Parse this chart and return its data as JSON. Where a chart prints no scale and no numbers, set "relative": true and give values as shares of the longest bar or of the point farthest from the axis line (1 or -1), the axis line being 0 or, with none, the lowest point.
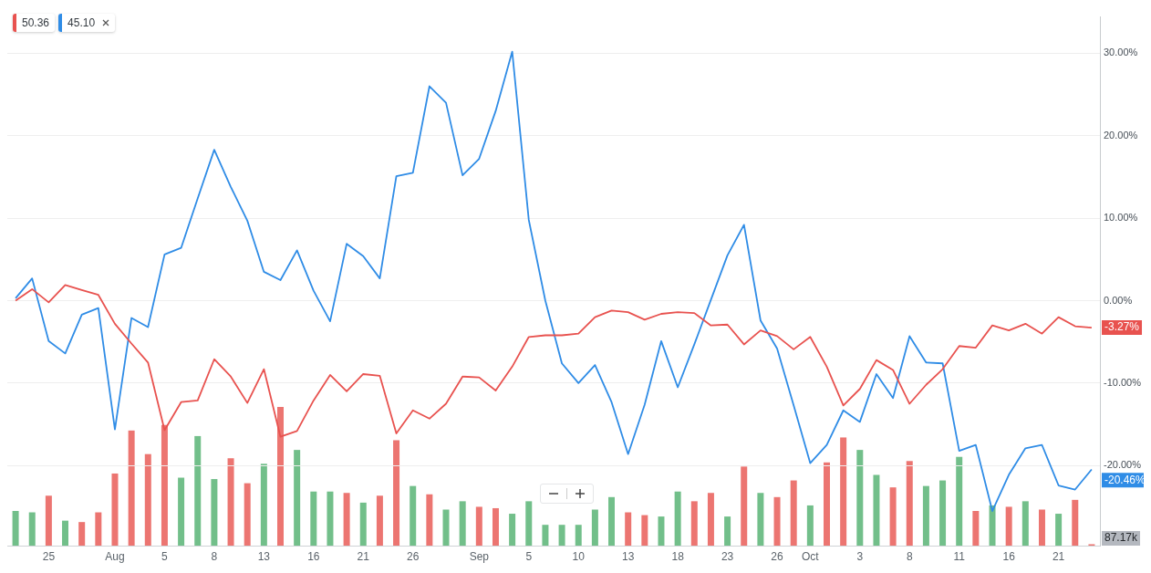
{
  "chart_data": [
    {
      "type": "line",
      "categories": [
        null,
        null,
        "25",
        null,
        null,
        null,
        "Aug",
        null,
        null,
        "5",
        null,
        null,
        "8",
        null,
        null,
        "13",
        null,
        null,
        "16",
        null,
        null,
        "21",
        null,
        null,
        "26",
        null,
        null,
        null,
        "Sep",
        null,
        null,
        "5",
        null,
        null,
        "10",
        null,
        null,
        "13",
        null,
        null,
        "18",
        null,
        null,
        "23",
        null,
        null,
        "26",
        null,
        "Oct",
        null,
        null,
        "3",
        null,
        null,
        "8",
        null,
        null,
        "11",
        null,
        null,
        "16",
        null,
        null,
        "21",
        null,
        null
      ],
      "series": [
        {
          "color": "#e8524f",
          "values": [
            0.0,
            1.4,
            -0.2,
            1.9,
            1.3,
            0.7,
            -2.8,
            -5.2,
            -7.5,
            -15.7,
            -12.3,
            -12.1,
            -7.1,
            -9.2,
            -12.4,
            -8.3,
            -16.5,
            -15.8,
            -12.1,
            -9.0,
            -11.0,
            -8.9,
            -9.1,
            -16.1,
            -13.3,
            -14.3,
            -12.5,
            -9.2,
            -9.3,
            -10.9,
            -8.0,
            -4.4,
            -4.2,
            -4.2,
            -4.0,
            -2.0,
            -1.2,
            -1.4,
            -2.3,
            -1.6,
            -1.4,
            -1.5,
            -3.0,
            -2.9,
            -5.3,
            -3.6,
            -4.3,
            -5.9,
            -4.4,
            -8.0,
            -12.7,
            -10.7,
            -7.2,
            -8.4,
            -12.5,
            -10.2,
            -8.3,
            -5.5,
            -5.7,
            -3.0,
            -3.6,
            -2.8,
            -4.0,
            -2.0,
            -3.1,
            -3.27
          ],
          "value_labels": [
            null,
            null,
            null,
            null,
            null,
            null,
            null,
            null,
            null,
            null,
            null,
            null,
            null,
            null,
            null,
            null,
            null,
            null,
            null,
            null,
            null,
            null,
            null,
            null,
            null,
            null,
            null,
            null,
            null,
            null,
            null,
            null,
            null,
            null,
            null,
            null,
            null,
            null,
            null,
            null,
            null,
            null,
            null,
            null,
            null,
            null,
            null,
            null,
            null,
            null,
            null,
            null,
            null,
            null,
            null,
            null,
            null,
            null,
            null,
            null,
            null,
            null,
            null,
            null,
            null,
            "-3.27%"
          ]
        },
        {
          "color": "#2f8ce6",
          "values": [
            0.3,
            2.7,
            -4.9,
            -6.4,
            -1.7,
            -0.9,
            -15.6,
            -2.1,
            -3.2,
            5.6,
            6.4,
            12.4,
            18.3,
            13.8,
            9.7,
            3.5,
            2.5,
            6.1,
            1.2,
            -2.5,
            6.9,
            5.4,
            2.7,
            15.1,
            15.5,
            26.0,
            24.0,
            15.2,
            17.2,
            23.0,
            30.2,
            9.8,
            0.0,
            -7.6,
            -10.0,
            -7.8,
            -12.3,
            -18.6,
            -12.6,
            -4.9,
            -10.5,
            -5.3,
            0.1,
            5.5,
            9.2,
            -2.4,
            -5.8,
            -12.7,
            -19.7,
            -17.5,
            -13.3,
            -14.7,
            -8.9,
            -11.8,
            -4.3,
            -7.5,
            -7.6,
            -18.2,
            -17.5,
            -25.5,
            -21.1,
            -17.9,
            -17.5,
            -22.4,
            -22.9,
            -20.46
          ],
          "value_labels": [
            null,
            null,
            null,
            null,
            null,
            null,
            null,
            null,
            null,
            null,
            null,
            null,
            null,
            null,
            null,
            null,
            null,
            null,
            null,
            null,
            null,
            null,
            null,
            null,
            null,
            null,
            null,
            null,
            null,
            null,
            null,
            null,
            null,
            null,
            null,
            null,
            null,
            null,
            null,
            null,
            null,
            null,
            null,
            null,
            null,
            null,
            null,
            null,
            null,
            null,
            null,
            null,
            null,
            null,
            null,
            null,
            null,
            null,
            null,
            null,
            null,
            null,
            null,
            null,
            null,
            "-20.46%"
          ]
        }
      ],
      "ylim": [
        -29.7,
        34.4
      ],
      "yticks": [
        {
          "value": -20,
          "label": "-20.00%"
        },
        {
          "value": -10,
          "label": "-10.00%"
        },
        {
          "value": 0,
          "label": "0.00%"
        },
        {
          "value": 10,
          "label": "10.00%"
        },
        {
          "value": 20,
          "label": "20.00%"
        },
        {
          "value": 30,
          "label": "30.00%"
        }
      ],
      "grid": "y",
      "legend": false,
      "marker": "none",
      "annotations": [
        "50.36",
        "45.10"
      ]
    },
    {
      "type": "bar",
      "relative": true,
      "legend": false,
      "categories": [
        null,
        null,
        null,
        null,
        null,
        null,
        null,
        null,
        null,
        null,
        null,
        null,
        null,
        null,
        null,
        null,
        null,
        null,
        null,
        null,
        null,
        null,
        null,
        null,
        null,
        null,
        null,
        null,
        null,
        null,
        null,
        null,
        null,
        null,
        null,
        null,
        null,
        null,
        null,
        null,
        null,
        null,
        null,
        null,
        null,
        null,
        null,
        null,
        null,
        null,
        null,
        null,
        null,
        null,
        null,
        null,
        null,
        null,
        null,
        null,
        null,
        null,
        null,
        null,
        null,
        null
      ],
      "values": [
        0.25,
        0.24,
        0.36,
        0.18,
        0.17,
        0.24,
        0.52,
        0.83,
        0.66,
        0.87,
        0.49,
        0.79,
        0.48,
        0.63,
        0.45,
        0.59,
        1,
        0.69,
        0.39,
        0.39,
        0.38,
        0.31,
        0.36,
        0.76,
        0.43,
        0.37,
        0.26,
        0.32,
        0.28,
        0.27,
        0.23,
        0.32,
        0.15,
        0.15,
        0.15,
        0.26,
        0.35,
        0.24,
        0.22,
        0.21,
        0.39,
        0.32,
        0.38,
        0.21,
        0.57,
        0.38,
        0.35,
        0.47,
        0.29,
        0.6,
        0.78,
        0.69,
        0.51,
        0.42,
        0.61,
        0.43,
        0.47,
        0.64,
        0.25,
        0.29,
        0.28,
        0.32,
        0.26,
        0.23,
        0.33,
        0.01
      ],
      "colors": [
        "#72bf8a",
        "#72bf8a",
        "#ec7571",
        "#72bf8a",
        "#ec7571",
        "#ec7571",
        "#ec7571",
        "#ec7571",
        "#ec7571",
        "#ec7571",
        "#72bf8a",
        "#72bf8a",
        "#72bf8a",
        "#ec7571",
        "#ec7571",
        "#72bf8a",
        "#ec7571",
        "#72bf8a",
        "#72bf8a",
        "#72bf8a",
        "#ec7571",
        "#72bf8a",
        "#ec7571",
        "#ec7571",
        "#72bf8a",
        "#ec7571",
        "#72bf8a",
        "#72bf8a",
        "#ec7571",
        "#ec7571",
        "#72bf8a",
        "#72bf8a",
        "#72bf8a",
        "#72bf8a",
        "#72bf8a",
        "#72bf8a",
        "#72bf8a",
        "#ec7571",
        "#ec7571",
        "#72bf8a",
        "#72bf8a",
        "#ec7571",
        "#ec7571",
        "#72bf8a",
        "#ec7571",
        "#72bf8a",
        "#ec7571",
        "#ec7571",
        "#72bf8a",
        "#ec7571",
        "#ec7571",
        "#72bf8a",
        "#72bf8a",
        "#ec7571",
        "#ec7571",
        "#72bf8a",
        "#72bf8a",
        "#72bf8a",
        "#ec7571",
        "#72bf8a",
        "#ec7571",
        "#72bf8a",
        "#ec7571",
        "#72bf8a",
        "#ec7571",
        "#ec7571"
      ],
      "annotations": [
        "87.17k"
      ]
    }
  ]
}
